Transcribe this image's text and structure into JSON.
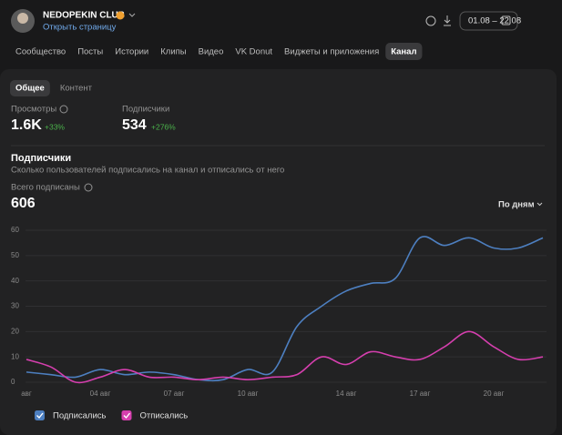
{
  "header": {
    "title": "NEDOPEKIN CLUB",
    "link": "Открыть страницу",
    "date_range": "01.08 – 22.08"
  },
  "tabs": [
    "Сообщество",
    "Посты",
    "Истории",
    "Клипы",
    "Видео",
    "VK Donut",
    "Виджеты и приложения",
    "Канал"
  ],
  "subtabs": [
    "Общее",
    "Контент"
  ],
  "stats": [
    {
      "label": "Просмотры",
      "value": "1.6K",
      "change": "+33%"
    },
    {
      "label": "Подписчики",
      "value": "534",
      "change": "+276%"
    }
  ],
  "section": {
    "title": "Подписчики",
    "subtitle": "Сколько пользователей подписались на канал и отписались от него",
    "total_label": "Всего подписаны",
    "total": "606",
    "period": "По дням"
  },
  "chart_data": {
    "type": "line",
    "categories": [
      "авг",
      null,
      null,
      "04 авг",
      null,
      null,
      "07 авг",
      null,
      null,
      "10 авг",
      null,
      null,
      null,
      "14 авг",
      null,
      null,
      "17 авг",
      null,
      null,
      "20 авг",
      null,
      null
    ],
    "series": [
      {
        "name": "Подписались",
        "color": "#4d7fc0",
        "values": [
          4,
          3,
          2,
          5,
          3,
          4,
          3,
          1,
          1,
          5,
          4,
          22,
          30,
          36,
          39,
          41,
          57,
          54,
          57,
          53,
          53,
          57
        ]
      },
      {
        "name": "Отписались",
        "color": "#d53fae",
        "values": [
          9,
          6,
          0,
          2,
          5,
          2,
          2,
          1,
          2,
          1,
          2,
          3,
          10,
          7,
          12,
          10,
          9,
          14,
          20,
          14,
          9,
          10
        ]
      }
    ],
    "ylim": [
      0,
      60
    ],
    "yticks": [
      0,
      10,
      20,
      30,
      40,
      50,
      60
    ],
    "grid": true
  }
}
